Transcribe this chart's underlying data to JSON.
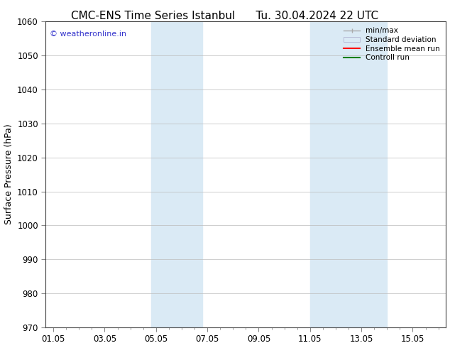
{
  "title_left": "CMC-ENS Time Series Istanbul",
  "title_right": "Tu. 30.04.2024 22 UTC",
  "ylabel": "Surface Pressure (hPa)",
  "ylim": [
    970,
    1060
  ],
  "yticks": [
    970,
    980,
    990,
    1000,
    1010,
    1020,
    1030,
    1040,
    1050,
    1060
  ],
  "xtick_labels": [
    "01.05",
    "03.05",
    "05.05",
    "07.05",
    "09.05",
    "11.05",
    "13.05",
    "15.05"
  ],
  "xtick_positions": [
    0,
    2,
    4,
    6,
    8,
    10,
    12,
    14
  ],
  "xlim": [
    -0.3,
    15.3
  ],
  "shaded_regions": [
    {
      "x_start": 3.8,
      "x_end": 5.8,
      "color": "#daeaf5"
    },
    {
      "x_start": 10.0,
      "x_end": 13.0,
      "color": "#daeaf5"
    }
  ],
  "watermark": "© weatheronline.in",
  "watermark_color": "#3333cc",
  "background_color": "#ffffff",
  "plot_bg_color": "#ffffff",
  "grid_color": "#bbbbbb",
  "title_fontsize": 11,
  "label_fontsize": 9,
  "tick_fontsize": 8.5
}
